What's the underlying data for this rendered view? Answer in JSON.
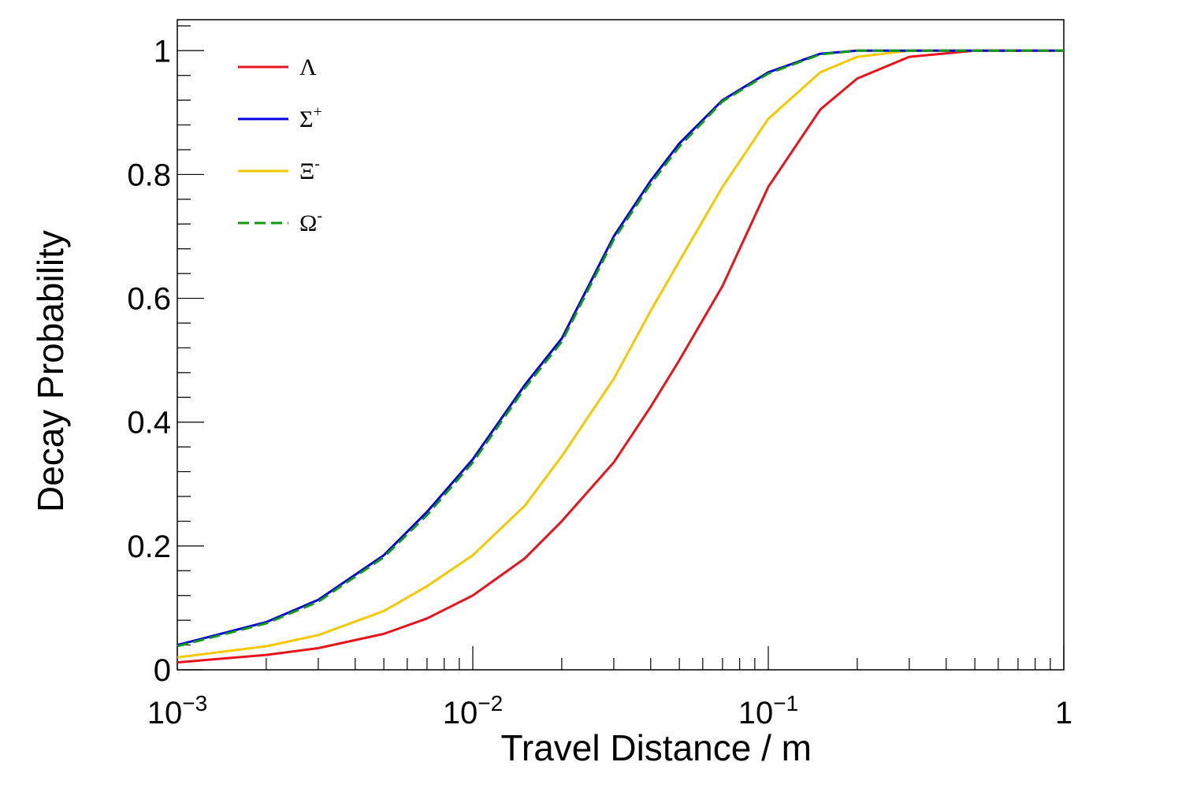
{
  "chart_data": {
    "type": "line",
    "title": "",
    "xlabel": "Travel Distance / m",
    "ylabel": "Decay Probability",
    "xscale": "log",
    "xlim": [
      0.001,
      1
    ],
    "ylim": [
      0,
      1.05
    ],
    "grid": false,
    "legend_position": "top-left",
    "x_ticks": [
      {
        "value": 0.001,
        "base": "10",
        "exp": "−3"
      },
      {
        "value": 0.01,
        "base": "10",
        "exp": "−2"
      },
      {
        "value": 0.1,
        "base": "10",
        "exp": "−1"
      },
      {
        "value": 1,
        "base": "1",
        "exp": ""
      }
    ],
    "y_ticks": [
      {
        "value": 0,
        "label": "0"
      },
      {
        "value": 0.2,
        "label": "0.2"
      },
      {
        "value": 0.4,
        "label": "0.4"
      },
      {
        "value": 0.6,
        "label": "0.6"
      },
      {
        "value": 0.8,
        "label": "0.8"
      },
      {
        "value": 1,
        "label": "1"
      }
    ],
    "x": [
      0.001,
      0.002,
      0.003,
      0.005,
      0.007,
      0.01,
      0.015,
      0.02,
      0.03,
      0.04,
      0.05,
      0.07,
      0.1,
      0.15,
      0.2,
      0.3,
      0.5,
      0.7,
      1.0
    ],
    "series": [
      {
        "name": "Λ",
        "sup": "",
        "color": "#e8141c",
        "dash": false,
        "values": [
          0.012,
          0.024,
          0.035,
          0.058,
          0.083,
          0.12,
          0.18,
          0.24,
          0.335,
          0.425,
          0.5,
          0.62,
          0.78,
          0.905,
          0.955,
          0.99,
          1.0,
          1.0,
          1.0
        ]
      },
      {
        "name": "Σ",
        "sup": "+",
        "color": "#0000e0",
        "dash": false,
        "values": [
          0.04,
          0.077,
          0.113,
          0.185,
          0.255,
          0.34,
          0.46,
          0.535,
          0.7,
          0.79,
          0.85,
          0.92,
          0.965,
          0.995,
          1.0,
          1.0,
          1.0,
          1.0,
          1.0
        ]
      },
      {
        "name": "Ξ",
        "sup": "-",
        "color": "#f5c800",
        "dash": false,
        "values": [
          0.02,
          0.038,
          0.056,
          0.095,
          0.135,
          0.185,
          0.265,
          0.345,
          0.47,
          0.58,
          0.66,
          0.78,
          0.89,
          0.965,
          0.99,
          1.0,
          1.0,
          1.0,
          1.0
        ]
      },
      {
        "name": "Ω",
        "sup": "-",
        "color": "#119911",
        "dash": true,
        "values": [
          0.038,
          0.075,
          0.11,
          0.182,
          0.25,
          0.335,
          0.455,
          0.53,
          0.695,
          0.785,
          0.845,
          0.918,
          0.963,
          0.994,
          1.0,
          1.0,
          1.0,
          1.0,
          1.0
        ]
      }
    ]
  }
}
